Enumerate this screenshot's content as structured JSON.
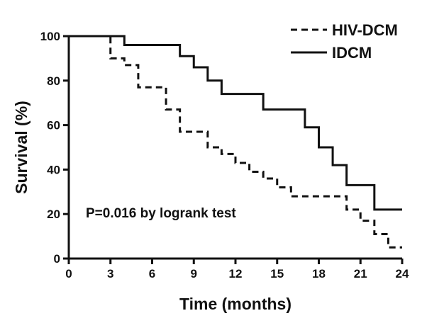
{
  "chart_data": {
    "type": "line",
    "step": true,
    "xlabel": "Time (months)",
    "ylabel": "Survival (%)",
    "xlim": [
      0,
      24
    ],
    "ylim": [
      0,
      100
    ],
    "xticks": [
      0,
      3,
      6,
      9,
      12,
      15,
      18,
      21,
      24
    ],
    "yticks": [
      0,
      20,
      40,
      60,
      80,
      100
    ],
    "grid": false,
    "legend_position": "top-right",
    "annotation": "P=0.016 by logrank test",
    "series": [
      {
        "name": "HIV-DCM",
        "style": "dashed",
        "color": "#111111",
        "x": [
          0,
          3,
          4,
          5,
          7,
          8,
          10,
          11,
          12,
          13,
          14,
          15,
          16,
          20,
          21,
          22,
          23,
          24
        ],
        "y": [
          100,
          90,
          87,
          77,
          67,
          57,
          50,
          47,
          43,
          39,
          36,
          32,
          28,
          22,
          17,
          11,
          5,
          5
        ]
      },
      {
        "name": "IDCM",
        "style": "solid",
        "color": "#111111",
        "x": [
          0,
          4,
          8,
          9,
          10,
          11,
          14,
          17,
          18,
          19,
          20,
          22,
          24
        ],
        "y": [
          100,
          96,
          91,
          86,
          80,
          74,
          67,
          59,
          50,
          42,
          33,
          22,
          22
        ]
      }
    ]
  }
}
